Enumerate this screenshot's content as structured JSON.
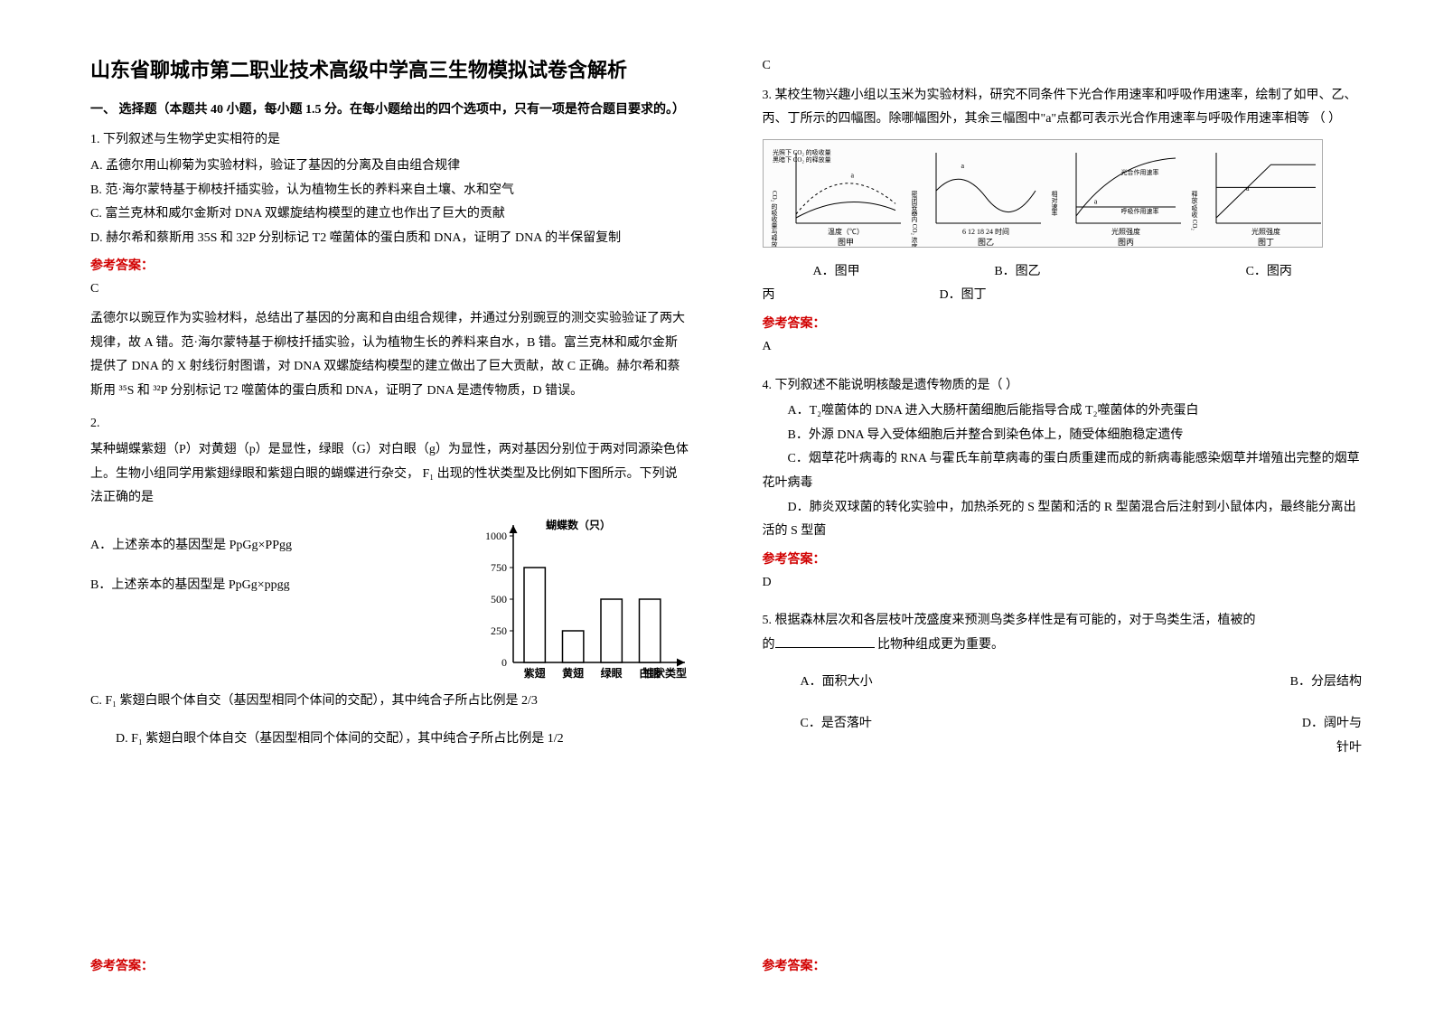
{
  "doc": {
    "title": "山东省聊城市第二职业技术高级中学高三生物模拟试卷含解析",
    "section1": "一、 选择题（本题共 40 小题，每小题 1.5 分。在每小题给出的四个选项中，只有一项是符合题目要求的。）",
    "q1": {
      "stem": "1. 下列叙述与生物学史实相符的是",
      "A": "A. 孟德尔用山柳菊为实验材料，验证了基因的分离及自由组合规律",
      "B": "B. 范·海尔蒙特基于柳枝扦插实验，认为植物生长的养料来自土壤、水和空气",
      "C": "C. 富兰克林和威尔金斯对 DNA  双螺旋结构模型的建立也作出了巨大的贡献",
      "D": "D. 赫尔希和蔡斯用 35S  和 32P 分别标记 T2 噬菌体的蛋白质和 DNA，证明了 DNA 的半保留复制",
      "ans_label": "参考答案：",
      "ans": "C",
      "explain": "孟德尔以豌豆作为实验材料，总结出了基因的分离和自由组合规律，并通过分别豌豆的测交实验验证了两大规律，故 A 错。范·海尔蒙特基于柳枝扦插实验，认为植物生长的养料来自水，B 错。富兰克林和威尔金斯提供了 DNA 的 X 射线衍射图谱，对 DNA 双螺旋结构模型的建立做出了巨大贡献，故 C 正确。赫尔希和蔡斯用 ³⁵S 和 ³²P 分别标记 T2 噬菌体的蛋白质和 DNA，证明了 DNA 是遗传物质，D 错误。"
    },
    "q2": {
      "num": "2.",
      "stem": "某种蝴蝶紫翅（P）对黄翅（p）是显性，绿眼（G）对白眼（g）为显性，两对基因分别位于两对同源染色体上。生物小组同学用紫翅绿眼和紫翅白眼的蝴蝶进行杂交， F₁ 出现的性状类型及比例如下图所示。下列说法正确的是",
      "A": "A．上述亲本的基因型是 PpGg×PPgg",
      "B": "B．上述亲本的基因型是 PpGg×ppgg",
      "C": "C. F₁ 紫翅白眼个体自交（基因型相同个体间的交配），其中纯合子所占比例是 2/3",
      "D": "D. F₁ 紫翅白眼个体自交（基因型相同个体间的交配），其中纯合子所占比例是 1/2",
      "ans_label": "参考答案：",
      "ans": "C",
      "chart": {
        "ylabel": "蝴蝶数（只）",
        "xlabel": "性状类型",
        "categories": [
          "紫翅",
          "黄翅",
          "绿眼",
          "白眼"
        ],
        "values": [
          750,
          250,
          500,
          500
        ],
        "ymax": 1000,
        "ytick": 250,
        "bar_color": "#ffffff",
        "bar_border": "#000000",
        "axis_color": "#000000",
        "font_size": 12
      }
    },
    "q3": {
      "stem": "3. 某校生物兴趣小组以玉米为实验材料，研究不同条件下光合作用速率和呼吸作用速率，绘制了如甲、乙、丙、丁所示的四幅图。除哪幅图外，其余三幅图中\"a\"点都可表示光合作用速率与呼吸作用速率相等            （    ）",
      "A": "A．图甲",
      "B": "B．图乙",
      "C": "C．图丙",
      "D": "D．图丁",
      "ans_label": "参考答案：",
      "ans": "A",
      "charts": {
        "panel_bg": "#fcfcfc",
        "line_color": "#000000",
        "jia": {
          "label": "图甲",
          "y": "CO₂ 的吸收量与释放量",
          "x": "温度（℃）",
          "legend1": "光照下 CO₂ 的吸收量",
          "legend2": "黑暗下 CO₂ 的释放量"
        },
        "yi": {
          "label": "图乙",
          "y": "密闭容器内 CO₂ 浓度",
          "x": "6  12  18  24 时间"
        },
        "bing": {
          "label": "图丙",
          "y": "相对速率",
          "x": "光照强度",
          "l1": "光合作用速率",
          "l2": "呼吸作用速率"
        },
        "ding": {
          "label": "图丁",
          "y": "释放/吸收 CO₂",
          "x": "光照强度"
        }
      }
    },
    "q4": {
      "stem": "4. 下列叙述不能说明核酸是遗传物质的是（  ）",
      "A": "A．T₂噬菌体的 DNA 进入大肠杆菌细胞后能指导合成 T₂噬菌体的外壳蛋白",
      "B": "B．外源 DNA 导入受体细胞后并整合到染色体上，随受体细胞稳定遗传",
      "C": "C．烟草花叶病毒的 RNA 与霍氏车前草病毒的蛋白质重建而成的新病毒能感染烟草并增殖出完整的烟草花叶病毒",
      "D": "D．肺炎双球菌的转化实验中，加热杀死的 S 型菌和活的 R 型菌混合后注射到小鼠体内，最终能分离出活的 S 型菌",
      "ans_label": "参考答案：",
      "ans": "D"
    },
    "q5": {
      "stem_a": "5. 根据森林层次和各层枝叶茂盛度来预测鸟类多样性是有可能的，对于鸟类生活，植被的",
      "stem_b": "比物种组成更为重要。",
      "A": "A．面积大小",
      "B": "B．分层结构",
      "C": "C．是否落叶",
      "D": "D．阔叶与针叶",
      "ans_label": "参考答案："
    }
  }
}
